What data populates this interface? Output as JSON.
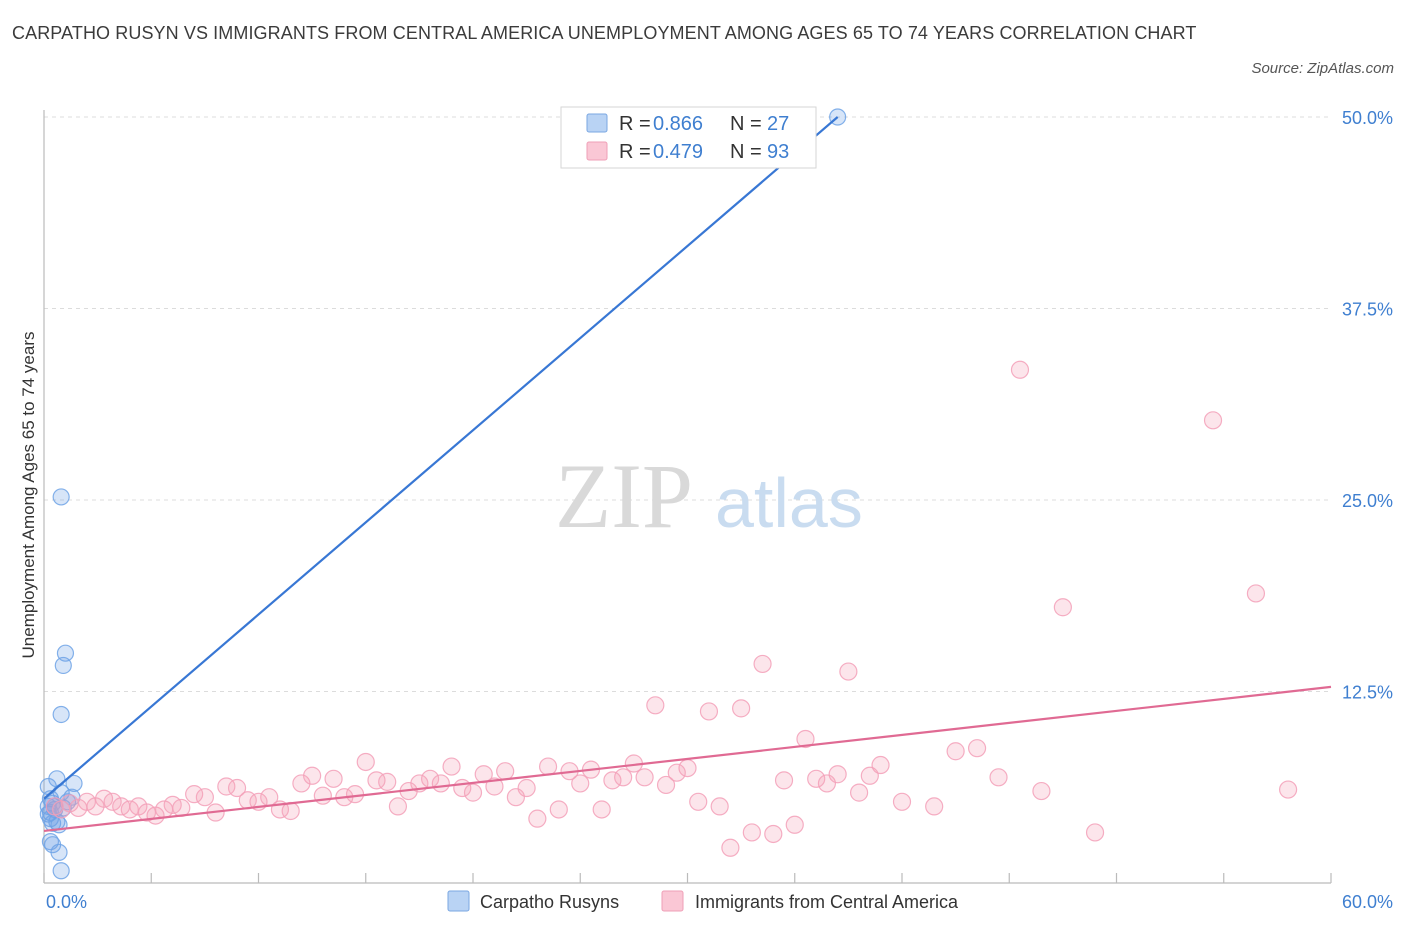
{
  "title": "CARPATHO RUSYN VS IMMIGRANTS FROM CENTRAL AMERICA UNEMPLOYMENT AMONG AGES 65 TO 74 YEARS CORRELATION CHART",
  "source": "Source: ZipAtlas.com",
  "watermark": {
    "zip": "ZIP",
    "atlas": "atlas"
  },
  "legend_box": {
    "rows": [
      {
        "r_label": "R = ",
        "r_value": "0.866",
        "n_label": "N = ",
        "n_value": "27",
        "color": "#a9c8f0"
      },
      {
        "r_label": "R = ",
        "r_value": "0.479",
        "n_label": "N = ",
        "n_value": "93",
        "color": "#f6b8ca"
      }
    ]
  },
  "bottom_legend": [
    {
      "label": "Carpatho Rusyns",
      "color": "#a9c8f0"
    },
    {
      "label": "Immigrants from Central America",
      "color": "#f6b8ca"
    }
  ],
  "chart_data": {
    "type": "scatter",
    "ylabel": "Unemployment Among Ages 65 to 74 years",
    "xlim": [
      0,
      60
    ],
    "ylim": [
      0,
      50
    ],
    "x_tick_labels": [
      "0.0%",
      "60.0%"
    ],
    "y_ticks": [
      12.5,
      25.0,
      37.5,
      50.0
    ],
    "y_tick_labels": [
      "12.5%",
      "25.0%",
      "37.5%",
      "50.0%"
    ],
    "grid": true,
    "series": [
      {
        "name": "Carpatho Rusyns",
        "color": "#6ea3e6",
        "line_color": "#3877d4",
        "trendline": {
          "x": [
            0.0,
            37.0
          ],
          "y": [
            5.5,
            50.0
          ]
        },
        "points": [
          [
            0.2,
            6.3
          ],
          [
            0.3,
            5.5
          ],
          [
            0.4,
            5.2
          ],
          [
            0.5,
            4.8
          ],
          [
            0.2,
            4.5
          ],
          [
            0.3,
            4.2
          ],
          [
            0.6,
            4.0
          ],
          [
            0.7,
            3.8
          ],
          [
            0.4,
            3.9
          ],
          [
            0.5,
            5.0
          ],
          [
            0.8,
            5.9
          ],
          [
            0.6,
            6.8
          ],
          [
            1.4,
            6.5
          ],
          [
            1.3,
            5.6
          ],
          [
            0.9,
            4.9
          ],
          [
            0.3,
            2.7
          ],
          [
            0.4,
            2.5
          ],
          [
            0.7,
            2.0
          ],
          [
            0.8,
            0.8
          ],
          [
            0.8,
            25.2
          ],
          [
            0.9,
            14.2
          ],
          [
            1.0,
            15.0
          ],
          [
            0.8,
            11.0
          ],
          [
            0.2,
            5.0
          ],
          [
            0.3,
            4.6
          ],
          [
            1.1,
            5.3
          ],
          [
            37.0,
            50.0
          ]
        ]
      },
      {
        "name": "Immigrants from Central America",
        "color": "#f3a0b8",
        "line_color": "#e06a93",
        "trendline": {
          "x": [
            0.0,
            60.0
          ],
          "y": [
            3.4,
            12.8
          ]
        },
        "points": [
          [
            0.5,
            5.0
          ],
          [
            0.8,
            4.8
          ],
          [
            1.2,
            5.2
          ],
          [
            1.6,
            4.9
          ],
          [
            2.0,
            5.3
          ],
          [
            2.4,
            5.0
          ],
          [
            2.8,
            5.5
          ],
          [
            3.2,
            5.3
          ],
          [
            3.6,
            5.0
          ],
          [
            4.0,
            4.8
          ],
          [
            4.4,
            5.0
          ],
          [
            4.8,
            4.6
          ],
          [
            5.2,
            4.4
          ],
          [
            5.6,
            4.8
          ],
          [
            6.0,
            5.1
          ],
          [
            6.4,
            4.9
          ],
          [
            7.0,
            5.8
          ],
          [
            7.5,
            5.6
          ],
          [
            8.0,
            4.6
          ],
          [
            8.5,
            6.3
          ],
          [
            9.0,
            6.2
          ],
          [
            9.5,
            5.4
          ],
          [
            10.0,
            5.3
          ],
          [
            10.5,
            5.6
          ],
          [
            11.0,
            4.8
          ],
          [
            11.5,
            4.7
          ],
          [
            12.0,
            6.5
          ],
          [
            12.5,
            7.0
          ],
          [
            13.0,
            5.7
          ],
          [
            13.5,
            6.8
          ],
          [
            14.0,
            5.6
          ],
          [
            14.5,
            5.8
          ],
          [
            15.0,
            7.9
          ],
          [
            15.5,
            6.7
          ],
          [
            16.0,
            6.6
          ],
          [
            16.5,
            5.0
          ],
          [
            17.0,
            6.0
          ],
          [
            17.5,
            6.5
          ],
          [
            18.0,
            6.8
          ],
          [
            18.5,
            6.5
          ],
          [
            19.0,
            7.6
          ],
          [
            19.5,
            6.2
          ],
          [
            20.0,
            5.9
          ],
          [
            20.5,
            7.1
          ],
          [
            21.0,
            6.3
          ],
          [
            21.5,
            7.3
          ],
          [
            22.0,
            5.6
          ],
          [
            22.5,
            6.2
          ],
          [
            23.0,
            4.2
          ],
          [
            23.5,
            7.6
          ],
          [
            24.0,
            4.8
          ],
          [
            24.5,
            7.3
          ],
          [
            25.0,
            6.5
          ],
          [
            25.5,
            7.4
          ],
          [
            26.0,
            4.8
          ],
          [
            26.5,
            6.7
          ],
          [
            27.0,
            6.9
          ],
          [
            27.5,
            7.8
          ],
          [
            28.0,
            6.9
          ],
          [
            28.5,
            11.6
          ],
          [
            29.0,
            6.4
          ],
          [
            29.5,
            7.2
          ],
          [
            30.0,
            7.5
          ],
          [
            30.5,
            5.3
          ],
          [
            31.0,
            11.2
          ],
          [
            31.5,
            5.0
          ],
          [
            32.0,
            2.3
          ],
          [
            32.5,
            11.4
          ],
          [
            33.0,
            3.3
          ],
          [
            33.5,
            14.3
          ],
          [
            34.0,
            3.2
          ],
          [
            34.5,
            6.7
          ],
          [
            35.0,
            3.8
          ],
          [
            35.5,
            9.4
          ],
          [
            36.0,
            6.8
          ],
          [
            36.5,
            6.5
          ],
          [
            37.0,
            7.1
          ],
          [
            37.5,
            13.8
          ],
          [
            38.0,
            5.9
          ],
          [
            38.5,
            7.0
          ],
          [
            39.0,
            7.7
          ],
          [
            40.0,
            5.3
          ],
          [
            41.5,
            5.0
          ],
          [
            42.5,
            8.6
          ],
          [
            43.5,
            8.8
          ],
          [
            44.5,
            6.9
          ],
          [
            45.5,
            33.5
          ],
          [
            46.5,
            6.0
          ],
          [
            47.5,
            18.0
          ],
          [
            49.0,
            3.3
          ],
          [
            54.5,
            30.2
          ],
          [
            56.5,
            18.9
          ],
          [
            58.0,
            6.1
          ]
        ]
      }
    ]
  }
}
